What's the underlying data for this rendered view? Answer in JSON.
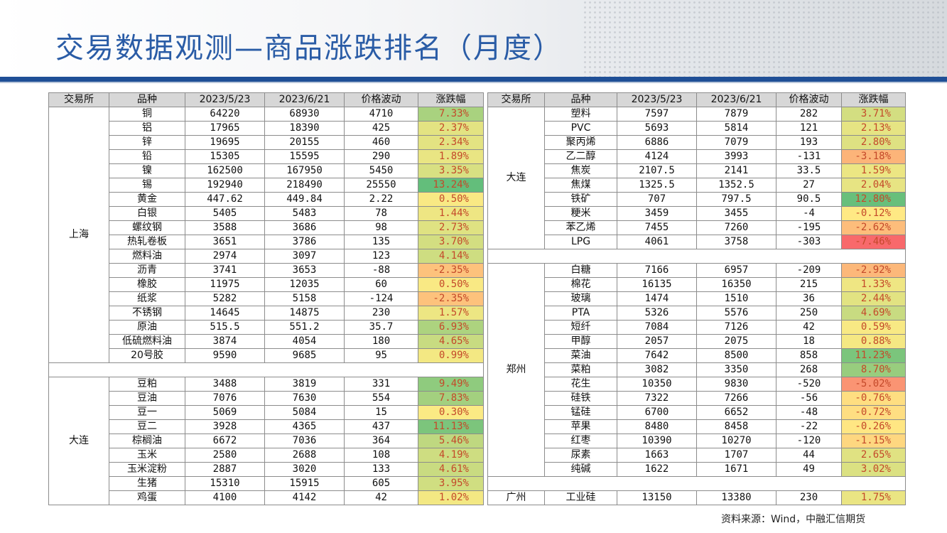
{
  "title": "交易数据观测—商品涨跌排名（月度）",
  "source": "资料来源：Wind，中融汇信期货",
  "headers": [
    "交易所",
    "品种",
    "2023/5/23",
    "2023/6/21",
    "价格波动",
    "涨跌幅"
  ],
  "colors": {
    "positive_max": "#63be7b",
    "neutral": "#ffeb84",
    "negative_max": "#f8696b",
    "header_bg": "#d7d7d7",
    "title": "#2a5ca6",
    "band": "#1f4f96"
  },
  "left_groups": [
    {
      "exchange": "上海",
      "rows": [
        {
          "name": "铜",
          "p1": "64220",
          "p2": "68930",
          "chg": "4710",
          "pct": "7.33%",
          "v": 7.33
        },
        {
          "name": "铝",
          "p1": "17965",
          "p2": "18390",
          "chg": "425",
          "pct": "2.37%",
          "v": 2.37
        },
        {
          "name": "锌",
          "p1": "19695",
          "p2": "20155",
          "chg": "460",
          "pct": "2.34%",
          "v": 2.34
        },
        {
          "name": "铅",
          "p1": "15305",
          "p2": "15595",
          "chg": "290",
          "pct": "1.89%",
          "v": 1.89
        },
        {
          "name": "镍",
          "p1": "162500",
          "p2": "167950",
          "chg": "5450",
          "pct": "3.35%",
          "v": 3.35
        },
        {
          "name": "锡",
          "p1": "192940",
          "p2": "218490",
          "chg": "25550",
          "pct": "13.24%",
          "v": 13.24
        },
        {
          "name": "黄金",
          "p1": "447.62",
          "p2": "449.84",
          "chg": "2.22",
          "pct": "0.50%",
          "v": 0.5
        },
        {
          "name": "白银",
          "p1": "5405",
          "p2": "5483",
          "chg": "78",
          "pct": "1.44%",
          "v": 1.44
        },
        {
          "name": "螺纹钢",
          "p1": "3588",
          "p2": "3686",
          "chg": "98",
          "pct": "2.73%",
          "v": 2.73
        },
        {
          "name": "热轧卷板",
          "p1": "3651",
          "p2": "3786",
          "chg": "135",
          "pct": "3.70%",
          "v": 3.7
        },
        {
          "name": "燃料油",
          "p1": "2974",
          "p2": "3097",
          "chg": "123",
          "pct": "4.14%",
          "v": 4.14
        },
        {
          "name": "沥青",
          "p1": "3741",
          "p2": "3653",
          "chg": "-88",
          "pct": "-2.35%",
          "v": -2.35
        },
        {
          "name": "橡胶",
          "p1": "11975",
          "p2": "12035",
          "chg": "60",
          "pct": "0.50%",
          "v": 0.5
        },
        {
          "name": "纸浆",
          "p1": "5282",
          "p2": "5158",
          "chg": "-124",
          "pct": "-2.35%",
          "v": -2.35
        },
        {
          "name": "不锈钢",
          "p1": "14645",
          "p2": "14875",
          "chg": "230",
          "pct": "1.57%",
          "v": 1.57
        },
        {
          "name": "原油",
          "p1": "515.5",
          "p2": "551.2",
          "chg": "35.7",
          "pct": "6.93%",
          "v": 6.93
        },
        {
          "name": "低硫燃料油",
          "p1": "3874",
          "p2": "4054",
          "chg": "180",
          "pct": "4.65%",
          "v": 4.65
        },
        {
          "name": "20号胶",
          "p1": "9590",
          "p2": "9685",
          "chg": "95",
          "pct": "0.99%",
          "v": 0.99
        }
      ]
    },
    {
      "exchange": "大连",
      "rows": [
        {
          "name": "豆粕",
          "p1": "3488",
          "p2": "3819",
          "chg": "331",
          "pct": "9.49%",
          "v": 9.49
        },
        {
          "name": "豆油",
          "p1": "7076",
          "p2": "7630",
          "chg": "554",
          "pct": "7.83%",
          "v": 7.83
        },
        {
          "name": "豆一",
          "p1": "5069",
          "p2": "5084",
          "chg": "15",
          "pct": "0.30%",
          "v": 0.3
        },
        {
          "name": "豆二",
          "p1": "3928",
          "p2": "4365",
          "chg": "437",
          "pct": "11.13%",
          "v": 11.13
        },
        {
          "name": "棕榈油",
          "p1": "6672",
          "p2": "7036",
          "chg": "364",
          "pct": "5.46%",
          "v": 5.46
        },
        {
          "name": "玉米",
          "p1": "2580",
          "p2": "2688",
          "chg": "108",
          "pct": "4.19%",
          "v": 4.19
        },
        {
          "name": "玉米淀粉",
          "p1": "2887",
          "p2": "3020",
          "chg": "133",
          "pct": "4.61%",
          "v": 4.61
        },
        {
          "name": "生猪",
          "p1": "15310",
          "p2": "15915",
          "chg": "605",
          "pct": "3.95%",
          "v": 3.95
        },
        {
          "name": "鸡蛋",
          "p1": "4100",
          "p2": "4142",
          "chg": "42",
          "pct": "1.02%",
          "v": 1.02
        }
      ]
    }
  ],
  "right_groups": [
    {
      "exchange": "大连",
      "rows": [
        {
          "name": "塑料",
          "p1": "7597",
          "p2": "7879",
          "chg": "282",
          "pct": "3.71%",
          "v": 3.71
        },
        {
          "name": "PVC",
          "p1": "5693",
          "p2": "5814",
          "chg": "121",
          "pct": "2.13%",
          "v": 2.13
        },
        {
          "name": "聚丙烯",
          "p1": "6886",
          "p2": "7079",
          "chg": "193",
          "pct": "2.80%",
          "v": 2.8
        },
        {
          "name": "乙二醇",
          "p1": "4124",
          "p2": "3993",
          "chg": "-131",
          "pct": "-3.18%",
          "v": -3.18
        },
        {
          "name": "焦炭",
          "p1": "2107.5",
          "p2": "2141",
          "chg": "33.5",
          "pct": "1.59%",
          "v": 1.59
        },
        {
          "name": "焦煤",
          "p1": "1325.5",
          "p2": "1352.5",
          "chg": "27",
          "pct": "2.04%",
          "v": 2.04
        },
        {
          "name": "铁矿",
          "p1": "707",
          "p2": "797.5",
          "chg": "90.5",
          "pct": "12.80%",
          "v": 12.8
        },
        {
          "name": "粳米",
          "p1": "3459",
          "p2": "3455",
          "chg": "-4",
          "pct": "-0.12%",
          "v": -0.12
        },
        {
          "name": "苯乙烯",
          "p1": "7455",
          "p2": "7260",
          "chg": "-195",
          "pct": "-2.62%",
          "v": -2.62
        },
        {
          "name": "LPG",
          "p1": "4061",
          "p2": "3758",
          "chg": "-303",
          "pct": "-7.46%",
          "v": -7.46
        }
      ]
    },
    {
      "exchange": "郑州",
      "rows": [
        {
          "name": "白糖",
          "p1": "7166",
          "p2": "6957",
          "chg": "-209",
          "pct": "-2.92%",
          "v": -2.92
        },
        {
          "name": "棉花",
          "p1": "16135",
          "p2": "16350",
          "chg": "215",
          "pct": "1.33%",
          "v": 1.33
        },
        {
          "name": "玻璃",
          "p1": "1474",
          "p2": "1510",
          "chg": "36",
          "pct": "2.44%",
          "v": 2.44
        },
        {
          "name": "PTA",
          "p1": "5326",
          "p2": "5576",
          "chg": "250",
          "pct": "4.69%",
          "v": 4.69
        },
        {
          "name": "短纤",
          "p1": "7084",
          "p2": "7126",
          "chg": "42",
          "pct": "0.59%",
          "v": 0.59
        },
        {
          "name": "甲醇",
          "p1": "2057",
          "p2": "2075",
          "chg": "18",
          "pct": "0.88%",
          "v": 0.88
        },
        {
          "name": "菜油",
          "p1": "7642",
          "p2": "8500",
          "chg": "858",
          "pct": "11.23%",
          "v": 11.23
        },
        {
          "name": "菜粕",
          "p1": "3082",
          "p2": "3350",
          "chg": "268",
          "pct": "8.70%",
          "v": 8.7
        },
        {
          "name": "花生",
          "p1": "10350",
          "p2": "9830",
          "chg": "-520",
          "pct": "-5.02%",
          "v": -5.02
        },
        {
          "name": "硅铁",
          "p1": "7322",
          "p2": "7266",
          "chg": "-56",
          "pct": "-0.76%",
          "v": -0.76
        },
        {
          "name": "锰硅",
          "p1": "6700",
          "p2": "6652",
          "chg": "-48",
          "pct": "-0.72%",
          "v": -0.72
        },
        {
          "name": "苹果",
          "p1": "8480",
          "p2": "8458",
          "chg": "-22",
          "pct": "-0.26%",
          "v": -0.26
        },
        {
          "name": "红枣",
          "p1": "10390",
          "p2": "10270",
          "chg": "-120",
          "pct": "-1.15%",
          "v": -1.15
        },
        {
          "name": "尿素",
          "p1": "1663",
          "p2": "1707",
          "chg": "44",
          "pct": "2.65%",
          "v": 2.65
        },
        {
          "name": "纯碱",
          "p1": "1622",
          "p2": "1671",
          "chg": "49",
          "pct": "3.02%",
          "v": 3.02
        }
      ]
    },
    {
      "exchange": "广州",
      "rows": [
        {
          "name": "工业硅",
          "p1": "13150",
          "p2": "13380",
          "chg": "230",
          "pct": "1.75%",
          "v": 1.75
        }
      ]
    }
  ]
}
